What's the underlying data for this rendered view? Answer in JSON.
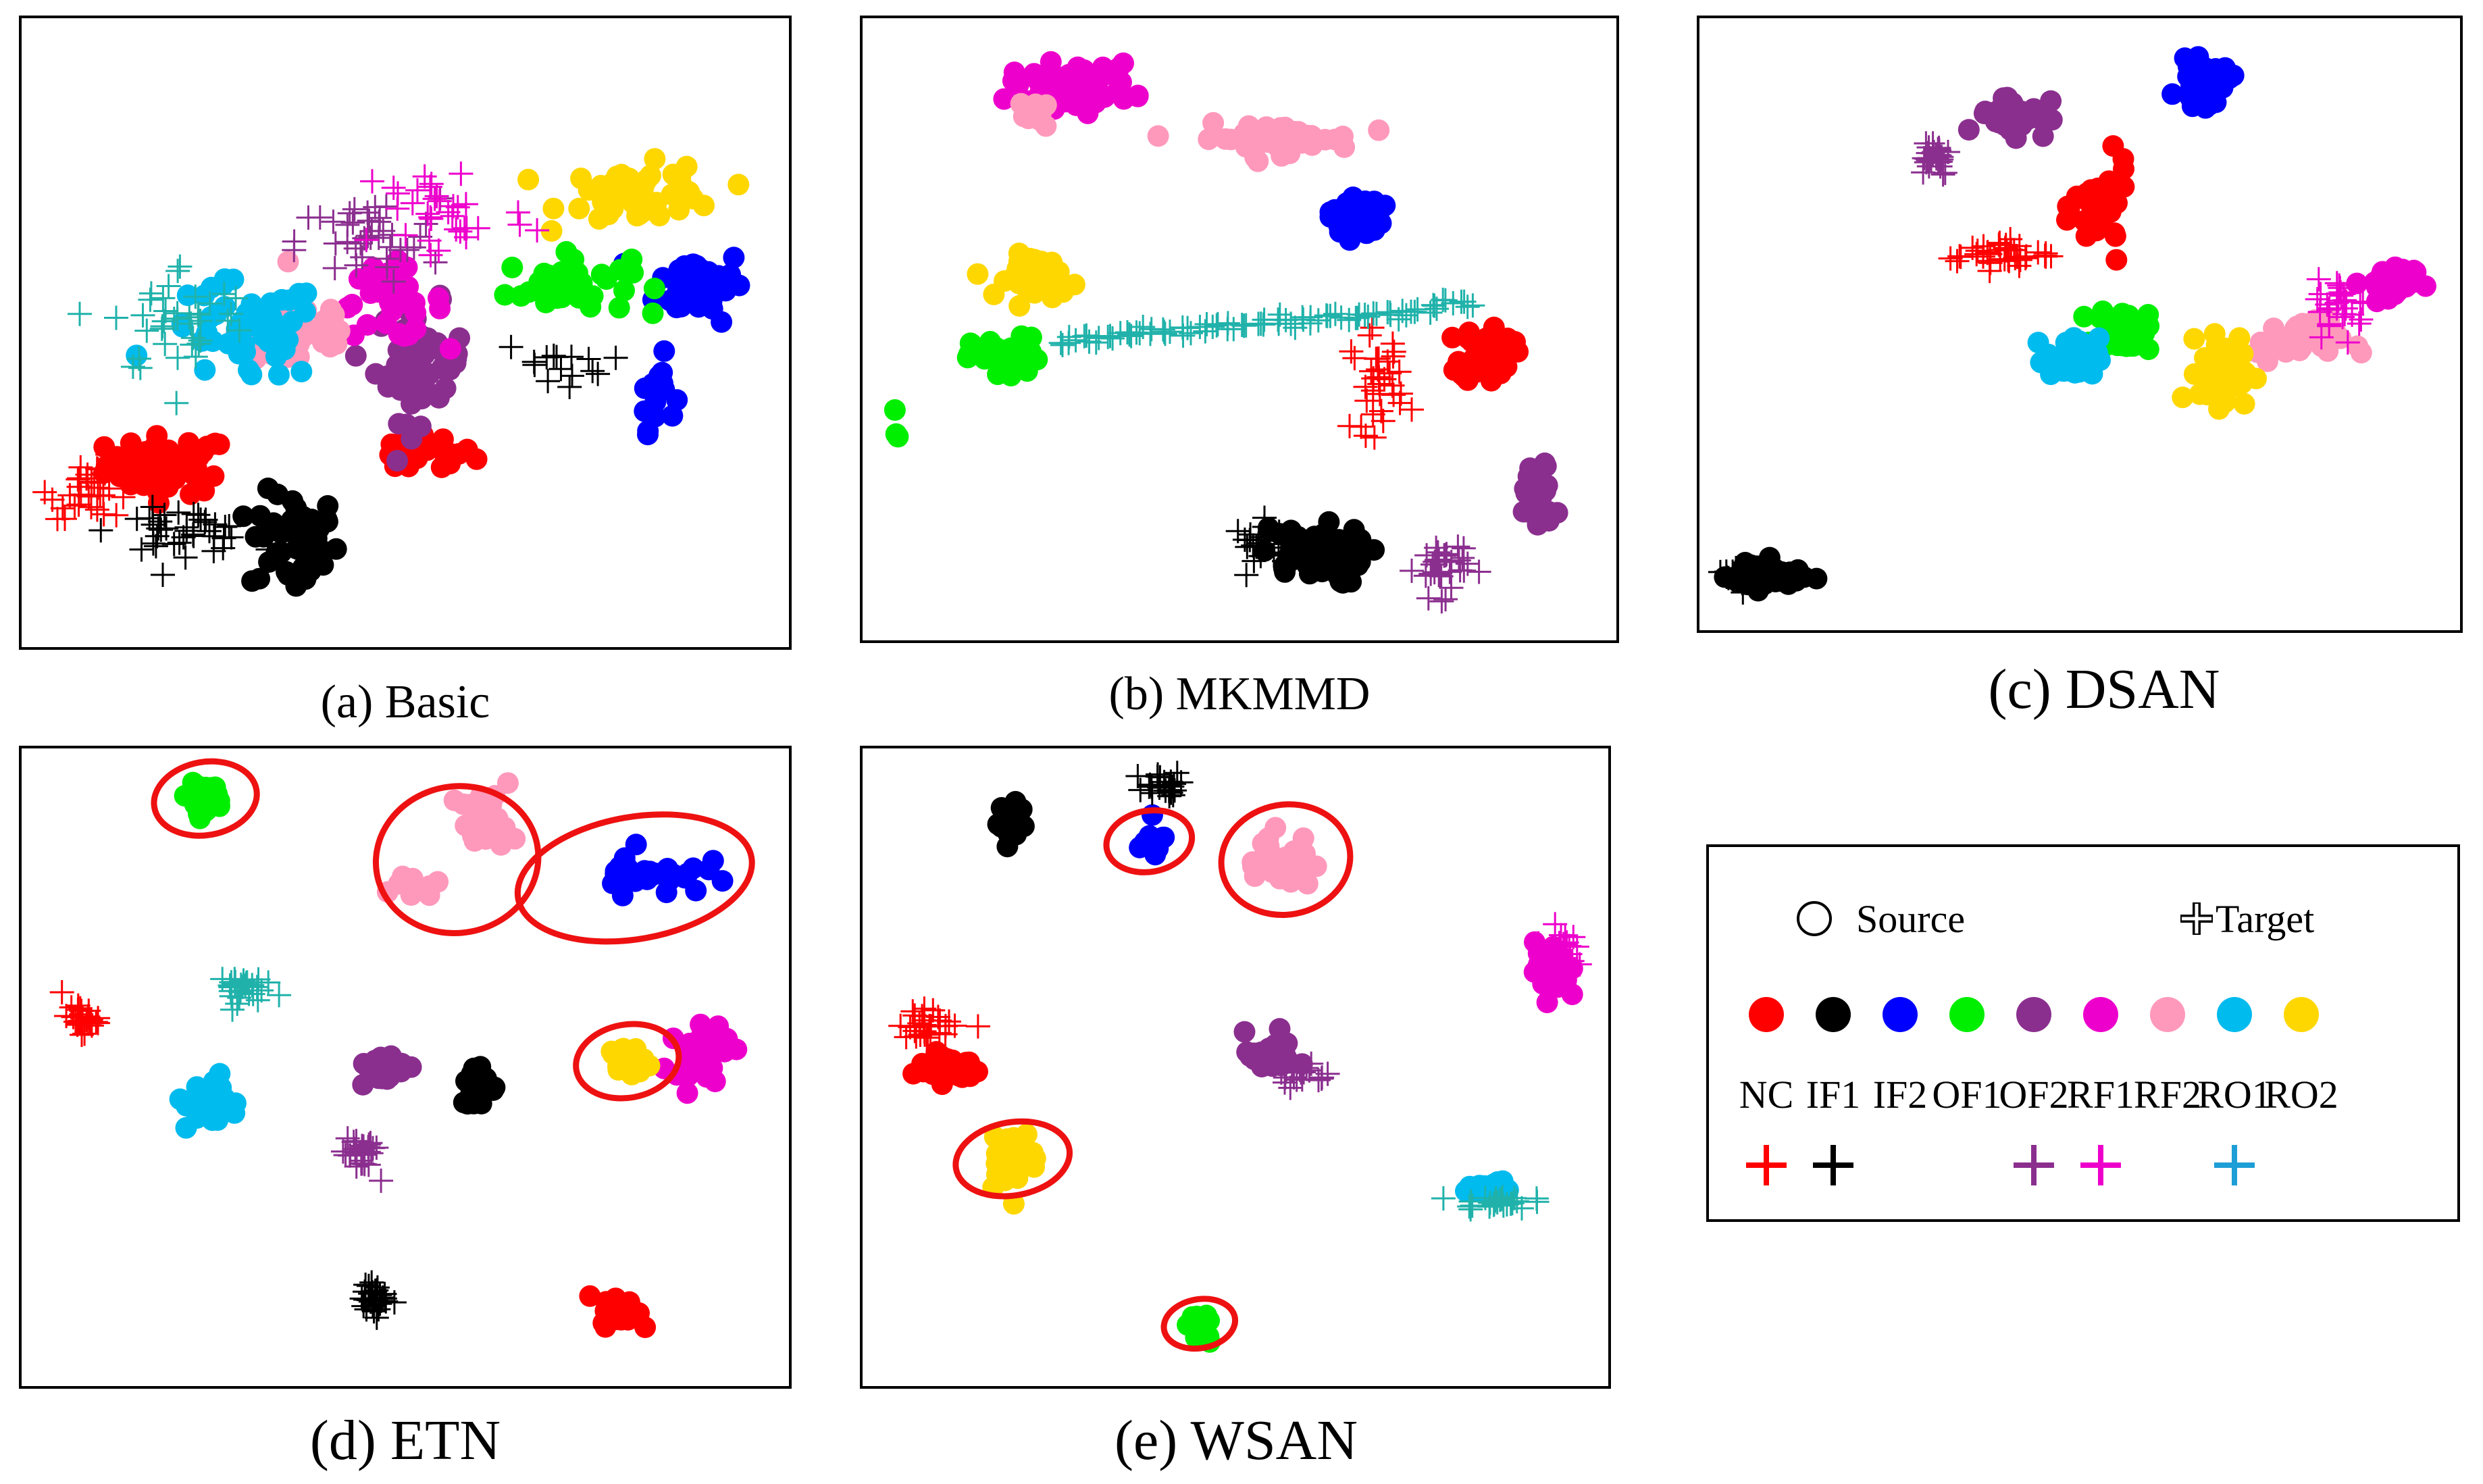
{
  "figure": {
    "captions": [
      "(a) Basic",
      "(b) MKMMD",
      "(c) DSAN",
      "(d) ETN",
      "(e) WSAN"
    ]
  },
  "legend": {
    "source_label": "Source",
    "target_label": "Target",
    "classes": [
      {
        "label": "NC",
        "color": "#ff0000",
        "target": true
      },
      {
        "label": "IF1",
        "color": "#000000",
        "target": true
      },
      {
        "label": "IF2",
        "color": "#0000ff",
        "target": false
      },
      {
        "label": "OF1",
        "color": "#00ee00",
        "target": false
      },
      {
        "label": "OF2",
        "color": "#8b2f8f",
        "target": true
      },
      {
        "label": "RF1",
        "color": "#ee00cc",
        "target": true
      },
      {
        "label": "RF2",
        "color": "#ff99bb",
        "target": false
      },
      {
        "label": "RO1",
        "color": "#00bbee",
        "target": true
      },
      {
        "label": "RO2",
        "color": "#ffd700",
        "target": false
      }
    ],
    "target_colors": {
      "RO1": "#1e9ed6",
      "RO1_alt": "#20b2aa"
    },
    "highlight_color": "#ee1111"
  },
  "chart_data": [
    {
      "type": "scatter",
      "title": "(a) Basic",
      "xlim": [
        0,
        100
      ],
      "ylim": [
        0,
        100
      ],
      "axes_ticks": false,
      "clusters": [
        {
          "class": "NC",
          "domain": "source",
          "center": [
            18,
            28
          ],
          "spread": [
            7,
            4
          ],
          "n": 60
        },
        {
          "class": "NC",
          "domain": "source",
          "center": [
            52,
            30
          ],
          "spread": [
            6,
            3
          ],
          "n": 25
        },
        {
          "class": "NC",
          "domain": "target",
          "center": [
            8,
            24
          ],
          "spread": [
            5,
            4
          ],
          "n": 35
        },
        {
          "class": "IF1",
          "domain": "source",
          "center": [
            35,
            15
          ],
          "spread": [
            5,
            7
          ],
          "n": 50
        },
        {
          "class": "IF1",
          "domain": "target",
          "center": [
            20,
            17
          ],
          "spread": [
            8,
            3
          ],
          "n": 40
        },
        {
          "class": "IF1",
          "domain": "target",
          "center": [
            70,
            45
          ],
          "spread": [
            6,
            3
          ],
          "n": 15
        },
        {
          "class": "IF2",
          "domain": "source",
          "center": [
            90,
            58
          ],
          "spread": [
            5,
            5
          ],
          "n": 45
        },
        {
          "class": "IF2",
          "domain": "source",
          "center": [
            84,
            40
          ],
          "spread": [
            2,
            5
          ],
          "n": 15
        },
        {
          "class": "OF1",
          "domain": "source",
          "center": [
            72,
            58
          ],
          "spread": [
            7,
            4
          ],
          "n": 45
        },
        {
          "class": "OF2",
          "domain": "source",
          "center": [
            52,
            45
          ],
          "spread": [
            5,
            8
          ],
          "n": 50
        },
        {
          "class": "OF2",
          "domain": "target",
          "center": [
            45,
            65
          ],
          "spread": [
            8,
            6
          ],
          "n": 40
        },
        {
          "class": "RF1",
          "domain": "source",
          "center": [
            48,
            55
          ],
          "spread": [
            6,
            5
          ],
          "n": 40
        },
        {
          "class": "RF1",
          "domain": "target",
          "center": [
            55,
            70
          ],
          "spread": [
            10,
            8
          ],
          "n": 35
        },
        {
          "class": "RF2",
          "domain": "source",
          "center": [
            36,
            50
          ],
          "spread": [
            7,
            6
          ],
          "n": 45
        },
        {
          "class": "RO1",
          "domain": "source",
          "center": [
            28,
            50
          ],
          "spread": [
            9,
            7
          ],
          "n": 55
        },
        {
          "class": "RO1",
          "domain": "target",
          "center": [
            20,
            52
          ],
          "spread": [
            8,
            8
          ],
          "n": 40
        },
        {
          "class": "RO2",
          "domain": "source",
          "center": [
            82,
            73
          ],
          "spread": [
            9,
            4
          ],
          "n": 50
        }
      ]
    },
    {
      "type": "scatter",
      "title": "(b) MKMMD",
      "xlim": [
        0,
        100
      ],
      "ylim": [
        0,
        100
      ],
      "axes_ticks": false,
      "clusters": [
        {
          "class": "NC",
          "domain": "source",
          "center": [
            84,
            46
          ],
          "spread": [
            3,
            4
          ],
          "n": 40
        },
        {
          "class": "NC",
          "domain": "target",
          "center": [
            69,
            41
          ],
          "spread": [
            3,
            7
          ],
          "n": 35
        },
        {
          "class": "IF1",
          "domain": "source",
          "center": [
            60,
            12
          ],
          "spread": [
            6,
            4
          ],
          "n": 70
        },
        {
          "class": "IF1",
          "domain": "target",
          "center": [
            54,
            14
          ],
          "spread": [
            4,
            3
          ],
          "n": 25
        },
        {
          "class": "IF2",
          "domain": "source",
          "center": [
            66,
            69
          ],
          "spread": [
            3,
            3
          ],
          "n": 35
        },
        {
          "class": "OF1",
          "domain": "source",
          "center": [
            18,
            45
          ],
          "spread": [
            4,
            3
          ],
          "n": 45
        },
        {
          "class": "OF1",
          "domain": "source",
          "center": [
            3,
            33
          ],
          "spread": [
            1,
            3
          ],
          "n": 3
        },
        {
          "class": "OF2",
          "domain": "source",
          "center": [
            91,
            22
          ],
          "spread": [
            2,
            5
          ],
          "n": 40
        },
        {
          "class": "OF2",
          "domain": "target",
          "center": [
            78,
            10
          ],
          "spread": [
            3,
            4
          ],
          "n": 35
        },
        {
          "class": "RF1",
          "domain": "source",
          "center": [
            27,
            91
          ],
          "spread": [
            7,
            3
          ],
          "n": 60
        },
        {
          "class": "RF2",
          "domain": "source",
          "center": [
            55,
            82
          ],
          "spread": [
            9,
            2
          ],
          "n": 50
        },
        {
          "class": "RF2",
          "domain": "source",
          "center": [
            22,
            86
          ],
          "spread": [
            2,
            2
          ],
          "n": 8
        },
        {
          "class": "RO1",
          "domain": "target",
          "line_from": [
            25,
            48
          ],
          "line_to": [
            82,
            54
          ],
          "n": 90
        },
        {
          "class": "RO2",
          "domain": "source",
          "center": [
            23,
            59
          ],
          "spread": [
            4,
            3
          ],
          "n": 45
        }
      ]
    },
    {
      "type": "scatter",
      "title": "(c) DSAN",
      "xlim": [
        0,
        100
      ],
      "ylim": [
        0,
        100
      ],
      "axes_ticks": false,
      "clusters": [
        {
          "class": "NC",
          "domain": "source",
          "center": [
            53,
            70
          ],
          "spread": [
            3,
            6
          ],
          "n": 45
        },
        {
          "class": "NC",
          "domain": "target",
          "center": [
            39,
            62
          ],
          "spread": [
            6,
            2
          ],
          "n": 40
        },
        {
          "class": "IF1",
          "domain": "source",
          "center": [
            7,
            7
          ],
          "spread": [
            4,
            2
          ],
          "n": 60
        },
        {
          "class": "IF1",
          "domain": "target",
          "center": [
            5,
            7
          ],
          "spread": [
            3,
            2
          ],
          "n": 25
        },
        {
          "class": "IF2",
          "domain": "source",
          "center": [
            67,
            91
          ],
          "spread": [
            3,
            3
          ],
          "n": 35
        },
        {
          "class": "OF1",
          "domain": "source",
          "center": [
            56,
            49
          ],
          "spread": [
            3,
            3
          ],
          "n": 35
        },
        {
          "class": "OF2",
          "domain": "source",
          "center": [
            41,
            86
          ],
          "spread": [
            4,
            3
          ],
          "n": 40
        },
        {
          "class": "OF2",
          "domain": "target",
          "center": [
            30,
            79
          ],
          "spread": [
            2,
            3
          ],
          "n": 30
        },
        {
          "class": "RF1",
          "domain": "source",
          "center": [
            92,
            57
          ],
          "spread": [
            3,
            3
          ],
          "n": 35
        },
        {
          "class": "RF1",
          "domain": "target",
          "center": [
            86,
            53
          ],
          "spread": [
            3,
            4
          ],
          "n": 30
        },
        {
          "class": "RF2",
          "domain": "source",
          "center": [
            80,
            47
          ],
          "spread": [
            5,
            3
          ],
          "n": 35
        },
        {
          "class": "RO1",
          "domain": "source",
          "center": [
            49,
            44
          ],
          "spread": [
            3,
            3
          ],
          "n": 55
        },
        {
          "class": "RO2",
          "domain": "source",
          "center": [
            70,
            42
          ],
          "spread": [
            3,
            5
          ],
          "n": 40
        }
      ]
    },
    {
      "type": "scatter",
      "title": "(d) ETN",
      "xlim": [
        0,
        100
      ],
      "ylim": [
        0,
        100
      ],
      "axes_ticks": false,
      "clusters": [
        {
          "class": "NC",
          "domain": "source",
          "center": [
            79,
            10
          ],
          "spread": [
            2,
            2
          ],
          "n": 35
        },
        {
          "class": "NC",
          "domain": "target",
          "center": [
            6,
            58
          ],
          "spread": [
            2,
            2
          ],
          "n": 30
        },
        {
          "class": "IF1",
          "domain": "source",
          "center": [
            60,
            47
          ],
          "spread": [
            2,
            3
          ],
          "n": 35
        },
        {
          "class": "IF1",
          "domain": "target",
          "center": [
            46,
            12
          ],
          "spread": [
            1.5,
            2
          ],
          "n": 30
        },
        {
          "class": "IF2",
          "domain": "source",
          "center": [
            83,
            82
          ],
          "spread": [
            6,
            3
          ],
          "n": 35
        },
        {
          "class": "OF1",
          "domain": "source",
          "center": [
            23,
            94
          ],
          "spread": [
            2,
            2
          ],
          "n": 35
        },
        {
          "class": "OF2",
          "domain": "source",
          "center": [
            47,
            50
          ],
          "spread": [
            3,
            2
          ],
          "n": 35
        },
        {
          "class": "OF2",
          "domain": "target",
          "center": [
            44,
            36
          ],
          "spread": [
            2,
            3
          ],
          "n": 30
        },
        {
          "class": "RF1",
          "domain": "source",
          "center": [
            90,
            53
          ],
          "spread": [
            3,
            4
          ],
          "n": 40
        },
        {
          "class": "RF2",
          "domain": "source",
          "center": [
            61,
            90
          ],
          "spread": [
            3,
            4
          ],
          "n": 35
        },
        {
          "class": "RF2",
          "domain": "source",
          "center": [
            51,
            80
          ],
          "spread": [
            3,
            2
          ],
          "n": 12
        },
        {
          "class": "RO1",
          "domain": "source",
          "center": [
            24,
            44
          ],
          "spread": [
            3,
            4
          ],
          "n": 30
        },
        {
          "class": "RO1",
          "domain": "target",
          "center": [
            27,
            63
          ],
          "spread": [
            3,
            2
          ],
          "n": 30
        },
        {
          "class": "RO2",
          "domain": "source",
          "center": [
            80,
            51
          ],
          "spread": [
            2,
            2
          ],
          "n": 30
        }
      ],
      "highlights": [
        {
          "center": [
            23,
            94
          ],
          "radii": [
            7,
            6
          ]
        },
        {
          "center": [
            57,
            84
          ],
          "radii": [
            11,
            12
          ]
        },
        {
          "center": [
            81,
            81
          ],
          "radii": [
            16,
            10
          ]
        },
        {
          "center": [
            80,
            51
          ],
          "radii": [
            7,
            6
          ]
        }
      ]
    },
    {
      "type": "scatter",
      "title": "(e) WSAN",
      "xlim": [
        0,
        100
      ],
      "ylim": [
        0,
        100
      ],
      "axes_ticks": false,
      "clusters": [
        {
          "class": "NC",
          "domain": "source",
          "center": [
            10,
            50
          ],
          "spread": [
            4,
            2
          ],
          "n": 35
        },
        {
          "class": "NC",
          "domain": "target",
          "center": [
            8,
            57
          ],
          "spread": [
            4,
            2
          ],
          "n": 30
        },
        {
          "class": "IF1",
          "domain": "source",
          "center": [
            19,
            90
          ],
          "spread": [
            1.5,
            3
          ],
          "n": 30
        },
        {
          "class": "IF1",
          "domain": "target",
          "center": [
            40,
            96
          ],
          "spread": [
            3,
            2
          ],
          "n": 25
        },
        {
          "class": "IF2",
          "domain": "source",
          "center": [
            38,
            87
          ],
          "spread": [
            2,
            2
          ],
          "n": 15
        },
        {
          "class": "OF1",
          "domain": "source",
          "center": [
            45,
            7
          ],
          "spread": [
            1.5,
            2
          ],
          "n": 20
        },
        {
          "class": "OF2",
          "domain": "source",
          "center": [
            55,
            52
          ],
          "spread": [
            3,
            3
          ],
          "n": 30
        },
        {
          "class": "OF2",
          "domain": "target",
          "center": [
            59,
            49
          ],
          "spread": [
            3,
            2
          ],
          "n": 20
        },
        {
          "class": "RF1",
          "domain": "source",
          "center": [
            94,
            66
          ],
          "spread": [
            2,
            4
          ],
          "n": 25
        },
        {
          "class": "RF1",
          "domain": "target",
          "center": [
            95,
            69
          ],
          "spread": [
            2,
            3
          ],
          "n": 25
        },
        {
          "class": "RF2",
          "domain": "source",
          "center": [
            56,
            84
          ],
          "spread": [
            4,
            4
          ],
          "n": 35
        },
        {
          "class": "RO1",
          "domain": "source",
          "center": [
            86,
            30
          ],
          "spread": [
            3,
            1
          ],
          "n": 25
        },
        {
          "class": "RO1",
          "domain": "target",
          "center": [
            86,
            28
          ],
          "spread": [
            4,
            1
          ],
          "n": 25
        },
        {
          "class": "RO2",
          "domain": "source",
          "center": [
            19,
            35
          ],
          "spread": [
            3,
            4
          ],
          "n": 35
        }
      ],
      "highlights": [
        {
          "center": [
            38,
            87
          ],
          "radii": [
            6,
            5
          ]
        },
        {
          "center": [
            57,
            84
          ],
          "radii": [
            9,
            9
          ]
        },
        {
          "center": [
            19,
            35
          ],
          "radii": [
            8,
            6
          ]
        },
        {
          "center": [
            45,
            8
          ],
          "radii": [
            5,
            4
          ]
        }
      ]
    }
  ]
}
